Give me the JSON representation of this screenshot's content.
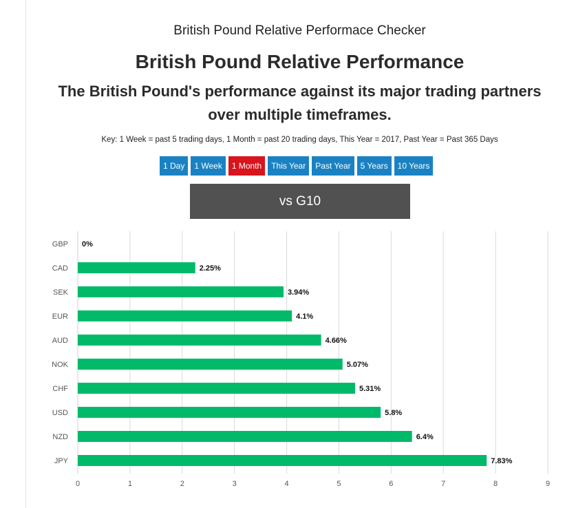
{
  "page": {
    "site_title": "British Pound Relative Performace Checker",
    "title": "British Pound Relative Performance",
    "subtitle": "The British Pound's performance against its major trading partners over multiple timeframes.",
    "key_text": "Key: 1 Week = past 5 trading days, 1 Month = past 20 trading days, This Year = 2017, Past Year = Past 365 Days",
    "banner": "vs G10"
  },
  "tabs": [
    {
      "label": "1 Day",
      "active": false
    },
    {
      "label": "1 Week",
      "active": false
    },
    {
      "label": "1 Month",
      "active": true
    },
    {
      "label": "This Year",
      "active": false
    },
    {
      "label": "Past Year",
      "active": false
    },
    {
      "label": "5 Years",
      "active": false
    },
    {
      "label": "10 Years",
      "active": false
    }
  ],
  "colors": {
    "tab_default": "#1a82c3",
    "tab_active": "#d8141c",
    "banner": "#515151",
    "bar": "#00ba6a",
    "grid": "#d9d9d9"
  },
  "chart_data": {
    "type": "bar",
    "orientation": "horizontal",
    "categories": [
      "GBP",
      "CAD",
      "SEK",
      "EUR",
      "AUD",
      "NOK",
      "CHF",
      "USD",
      "NZD",
      "JPY"
    ],
    "values": [
      0,
      2.25,
      3.94,
      4.1,
      4.66,
      5.07,
      5.31,
      5.8,
      6.4,
      7.83
    ],
    "data_labels": [
      "0%",
      "2.25%",
      "3.94%",
      "4.1%",
      "4.66%",
      "5.07%",
      "5.31%",
      "5.8%",
      "6.4%",
      "7.83%"
    ],
    "xlim": [
      0,
      9
    ],
    "xticks": [
      "0",
      "1",
      "2",
      "3",
      "4",
      "5",
      "6",
      "7",
      "8",
      "9"
    ],
    "grid": true,
    "legend": false
  }
}
